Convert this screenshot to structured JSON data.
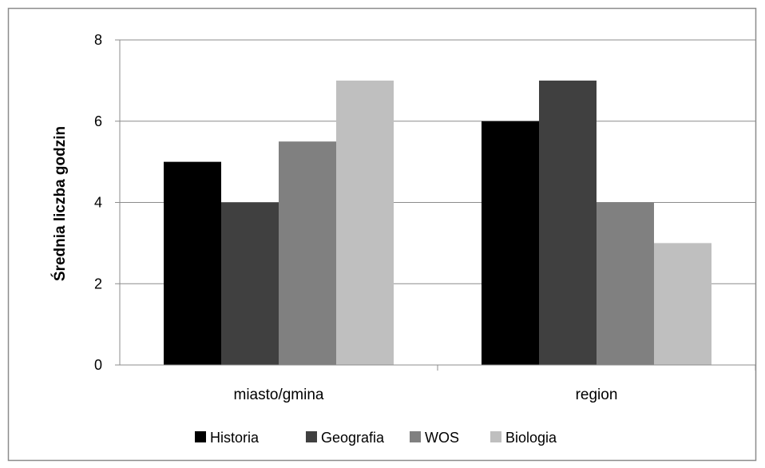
{
  "chart_data": {
    "type": "bar",
    "title": "",
    "xlabel": "",
    "ylabel": "Średnia liczba godzin",
    "categories": [
      "miasto/gmina",
      "region"
    ],
    "series": [
      {
        "name": "Historia",
        "values": [
          5,
          6
        ],
        "color": "#000000"
      },
      {
        "name": "Geografia",
        "values": [
          4,
          7
        ],
        "color": "#404040"
      },
      {
        "name": "WOS",
        "values": [
          5.5,
          4
        ],
        "color": "#808080"
      },
      {
        "name": "Biologia",
        "values": [
          7,
          3
        ],
        "color": "#bfbfbf"
      }
    ],
    "ylim": [
      0,
      8
    ],
    "yticks": [
      "0",
      "2",
      "4",
      "6",
      "8"
    ],
    "grid": true,
    "legend_position": "bottom"
  }
}
